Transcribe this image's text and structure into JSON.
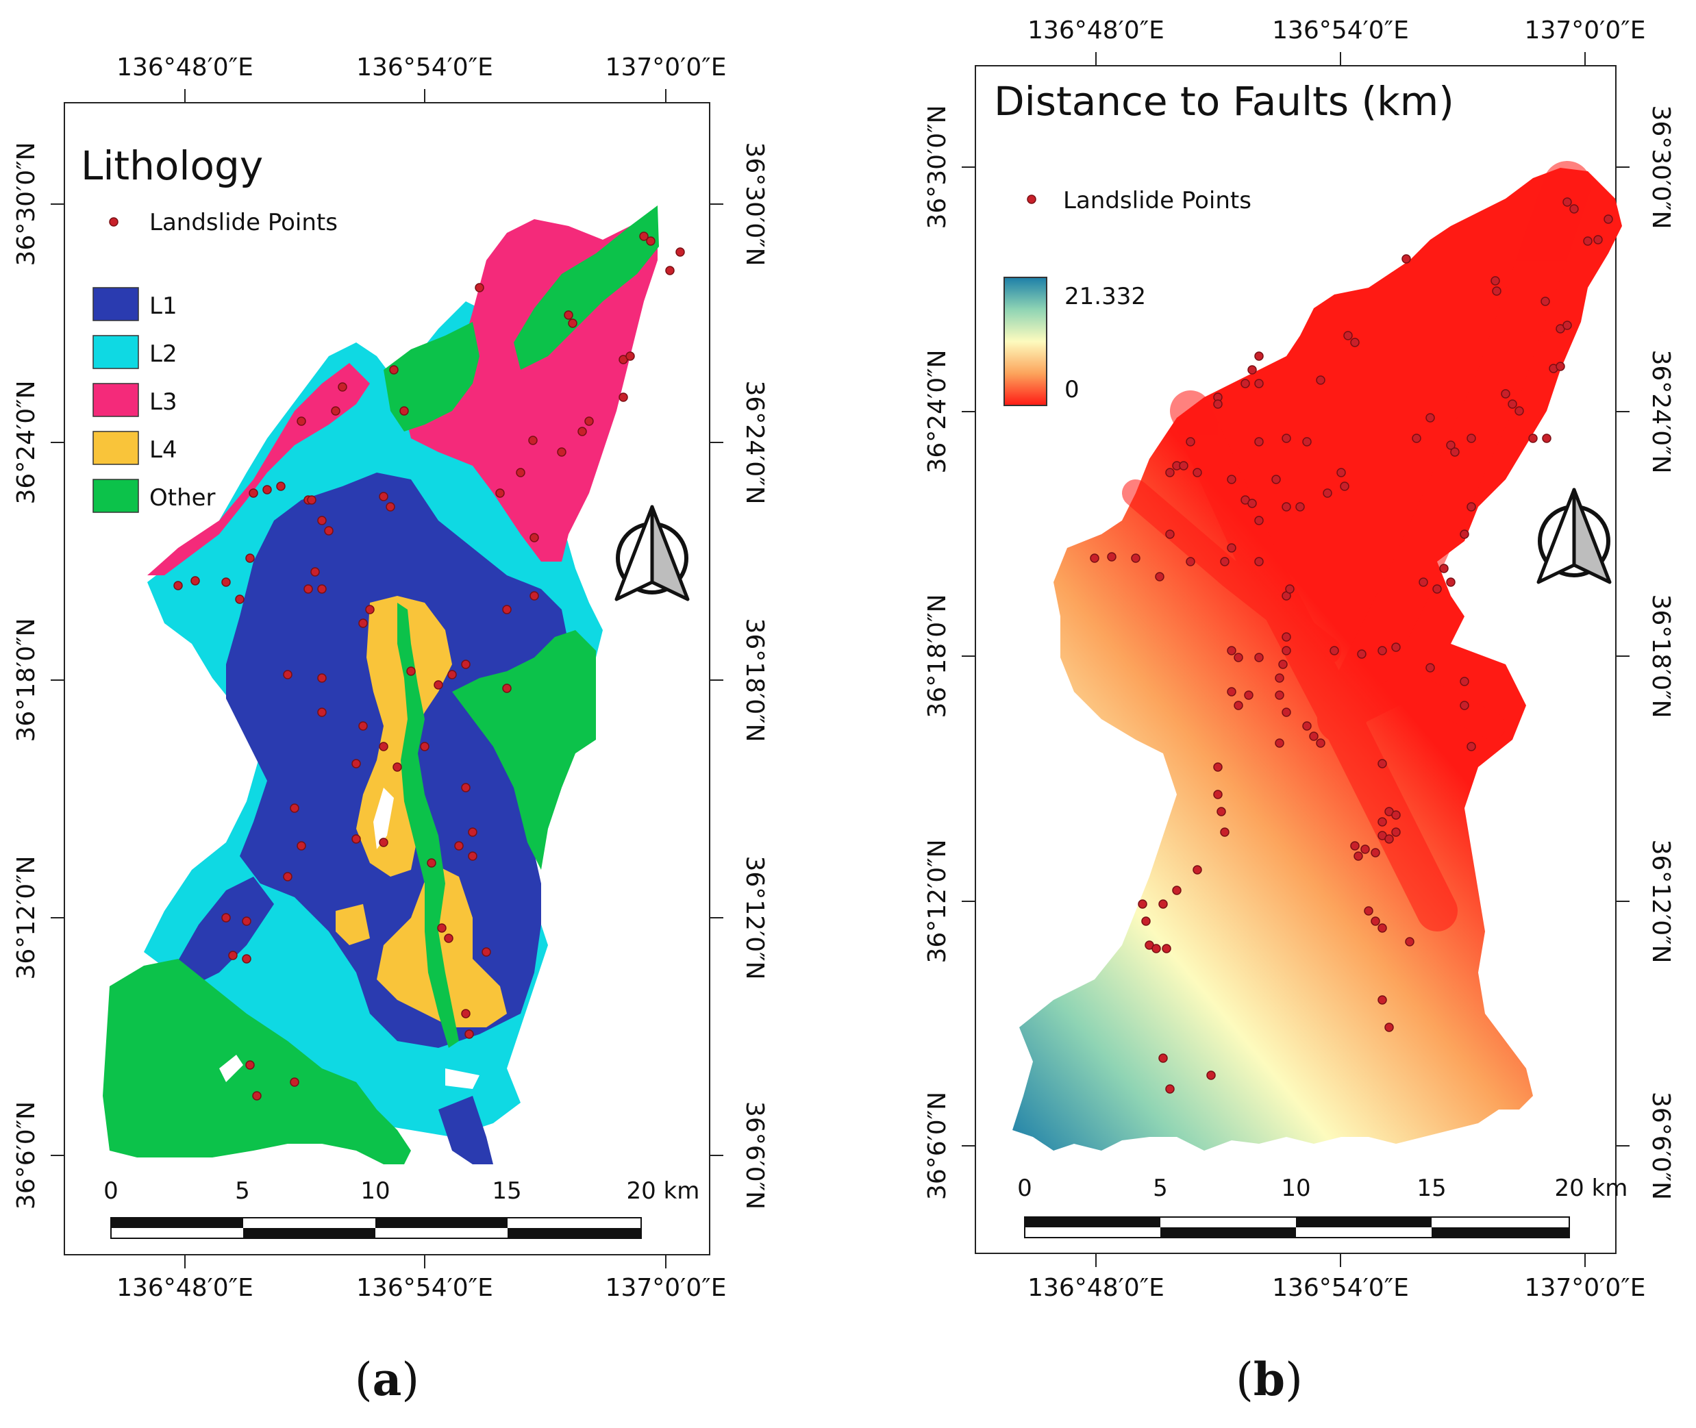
{
  "panels": [
    {
      "title": "Lithology",
      "caption": "a",
      "legend_point_label": "Landslide Points",
      "legend_classes": [
        {
          "label": "L1",
          "color": "#2a3bb0"
        },
        {
          "label": "L2",
          "color": "#0fd9e3"
        },
        {
          "label": "L3",
          "color": "#f42a7a"
        },
        {
          "label": "L4",
          "color": "#f9c43a"
        },
        {
          "label": "Other",
          "color": "#0cc24a"
        }
      ],
      "lon_labels": [
        "136°48′0″E",
        "136°54′0″E",
        "137°0′0″E"
      ],
      "lat_labels": [
        "36°30′0″N",
        "36°24′0″N",
        "36°18′0″N",
        "36°12′0″N",
        "36°6′0″N"
      ],
      "scale_labels": [
        "0",
        "5",
        "10",
        "15",
        "20 km"
      ]
    },
    {
      "title": "Distance to Faults (km)",
      "caption": "b",
      "legend_point_label": "Landslide Points",
      "ramp_max": "21.332",
      "ramp_min": "0",
      "lon_labels": [
        "136°48′0″E",
        "136°54′0″E",
        "137°0′0″E"
      ],
      "lat_labels": [
        "36°30′0″N",
        "36°24′0″N",
        "36°18′0″N",
        "36°12′0″N",
        "36°6′0″N"
      ],
      "scale_labels": [
        "0",
        "5",
        "10",
        "15",
        "20 km"
      ]
    }
  ],
  "colors": {
    "point": "#c8202a",
    "ramp": [
      "#1d7fa8",
      "#8fd4b4",
      "#fdfbbe",
      "#fca45c",
      "#ff1a14"
    ]
  },
  "icons": {
    "north_arrow": "north-arrow-icon"
  }
}
